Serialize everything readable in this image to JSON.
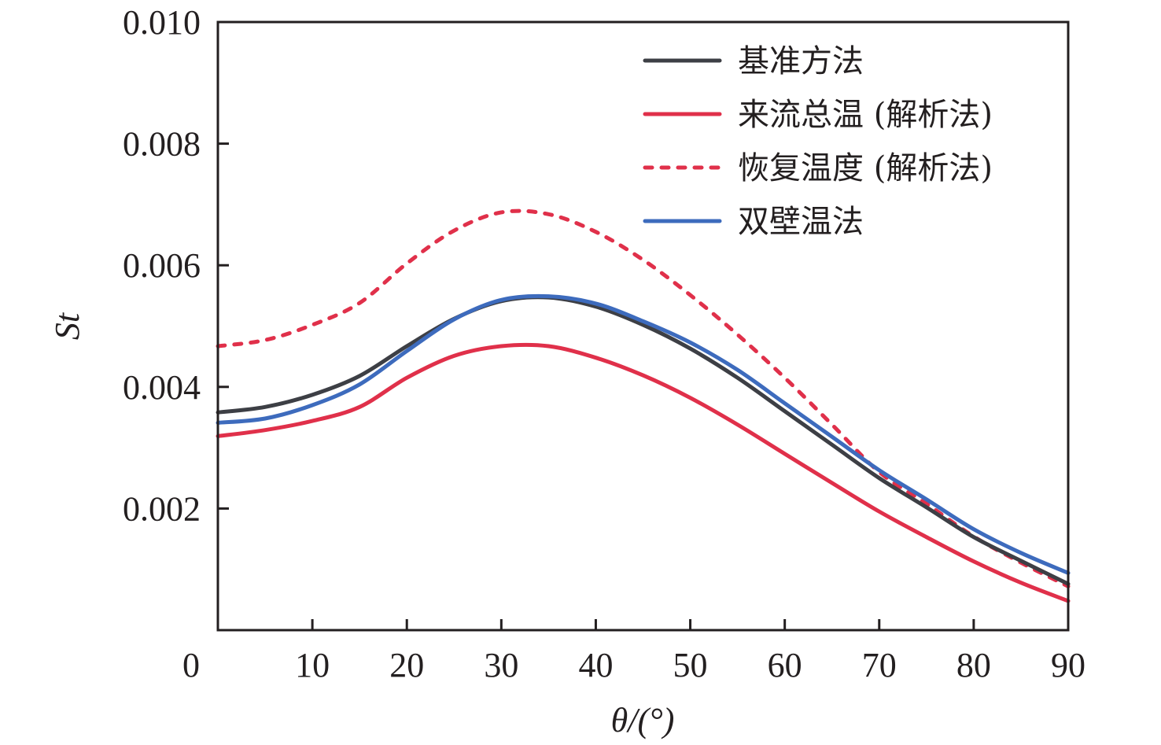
{
  "chart_data": {
    "type": "line",
    "title": "",
    "xlabel": "θ/(°)",
    "ylabel": "St",
    "xlim": [
      0,
      90
    ],
    "ylim": [
      0,
      0.01
    ],
    "grid": false,
    "legend_position": "top-right",
    "x_ticks": [
      0,
      10,
      20,
      30,
      40,
      50,
      60,
      70,
      80,
      90
    ],
    "x_tick_labels": [
      "0",
      "10",
      "20",
      "30",
      "40",
      "50",
      "60",
      "70",
      "80",
      "90"
    ],
    "y_ticks": [
      0.002,
      0.004,
      0.006,
      0.008,
      0.01
    ],
    "y_tick_labels": [
      "0.002",
      "0.004",
      "0.006",
      "0.008",
      "0.010"
    ],
    "x": [
      0,
      5,
      10,
      15,
      20,
      25,
      30,
      35,
      40,
      45,
      50,
      55,
      60,
      65,
      70,
      75,
      80,
      85,
      90
    ],
    "series": [
      {
        "name": "基准方法",
        "color": "#3d3f45",
        "style": "solid",
        "values": [
          0.00358,
          0.00367,
          0.00387,
          0.00418,
          0.00467,
          0.00512,
          0.00541,
          0.00547,
          0.00532,
          0.00502,
          0.00463,
          0.00415,
          0.0036,
          0.00305,
          0.0025,
          0.00202,
          0.00153,
          0.00114,
          0.00076
        ]
      },
      {
        "name": "来流总温 (解析法)",
        "color": "#e0304a",
        "style": "solid",
        "values": [
          0.00319,
          0.00329,
          0.00344,
          0.00367,
          0.00415,
          0.00451,
          0.00467,
          0.00467,
          0.00448,
          0.00419,
          0.00382,
          0.00338,
          0.0029,
          0.00242,
          0.00195,
          0.00153,
          0.00113,
          0.00078,
          0.00048
        ]
      },
      {
        "name": "恢复温度 (解析法)",
        "color": "#e0304a",
        "style": "dashed",
        "values": [
          0.00467,
          0.00477,
          0.00502,
          0.00538,
          0.00603,
          0.00657,
          0.00687,
          0.00684,
          0.00655,
          0.00609,
          0.00551,
          0.00486,
          0.00415,
          0.00338,
          0.0026,
          0.00208,
          0.00154,
          0.00111,
          0.00072
        ]
      },
      {
        "name": "双壁温法",
        "color": "#3d6bbd",
        "style": "solid",
        "values": [
          0.00341,
          0.00348,
          0.0037,
          0.00404,
          0.00459,
          0.00511,
          0.00543,
          0.00549,
          0.00537,
          0.00508,
          0.00473,
          0.00428,
          0.00373,
          0.00318,
          0.00263,
          0.00215,
          0.00166,
          0.00127,
          0.00094
        ]
      }
    ]
  }
}
